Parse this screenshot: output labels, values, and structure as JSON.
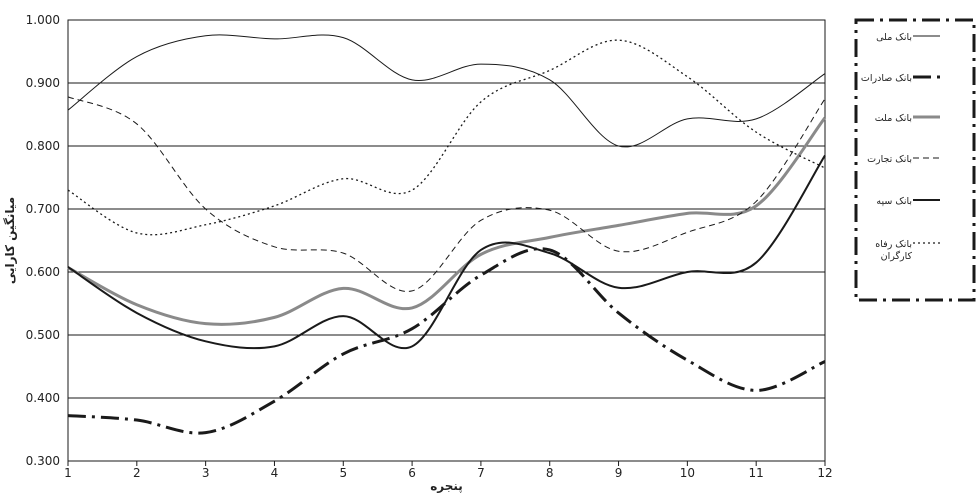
{
  "chart_data": {
    "type": "line",
    "title": "",
    "xlabel": "پنجره",
    "ylabel": "میانگین کارایی",
    "x": [
      1,
      2,
      3,
      4,
      5,
      6,
      7,
      8,
      9,
      10,
      11,
      12
    ],
    "x_tick_labels": [
      "1",
      "2",
      "3",
      "4",
      "5",
      "6",
      "7",
      "8",
      "9",
      "10",
      "11",
      "12"
    ],
    "ylim": [
      0.3,
      1.0
    ],
    "y_tick_labels": [
      "0.300",
      "0.400",
      "0.500",
      "0.600",
      "0.700",
      "0.800",
      "0.900",
      "1.000"
    ],
    "grid": "horizontal",
    "legend_position": "right",
    "series": [
      {
        "name": "بانک ملی",
        "style": "solid-thin",
        "color": "#1a1a1a",
        "values": [
          0.857,
          0.942,
          0.975,
          0.97,
          0.972,
          0.905,
          0.93,
          0.905,
          0.8,
          0.843,
          0.843,
          0.915
        ]
      },
      {
        "name": "بانک صادرات",
        "style": "dashdot-thick",
        "color": "#1a1a1a",
        "values": [
          0.372,
          0.365,
          0.345,
          0.395,
          0.47,
          0.51,
          0.595,
          0.635,
          0.535,
          0.46,
          0.412,
          0.458
        ]
      },
      {
        "name": "بانک ملت",
        "style": "solid-gray",
        "color": "#8a8a8a",
        "values": [
          0.607,
          0.548,
          0.518,
          0.528,
          0.574,
          0.543,
          0.628,
          0.655,
          0.674,
          0.693,
          0.705,
          0.845
        ]
      },
      {
        "name": "بانک تجارت",
        "style": "dashed",
        "color": "#1a1a1a",
        "values": [
          0.878,
          0.835,
          0.7,
          0.64,
          0.63,
          0.57,
          0.682,
          0.698,
          0.633,
          0.663,
          0.712,
          0.875
        ]
      },
      {
        "name": "بانک سپه",
        "style": "solid-medium",
        "color": "#1a1a1a",
        "values": [
          0.608,
          0.535,
          0.49,
          0.482,
          0.53,
          0.482,
          0.635,
          0.63,
          0.575,
          0.6,
          0.615,
          0.785
        ]
      },
      {
        "name": "بانک رفاه کارگران",
        "label_lines": [
          "بانک رفاه",
          "کارگران"
        ],
        "style": "dotted",
        "color": "#1a1a1a",
        "values": [
          0.73,
          0.662,
          0.675,
          0.705,
          0.748,
          0.73,
          0.87,
          0.92,
          0.968,
          0.91,
          0.822,
          0.765
        ]
      }
    ]
  }
}
